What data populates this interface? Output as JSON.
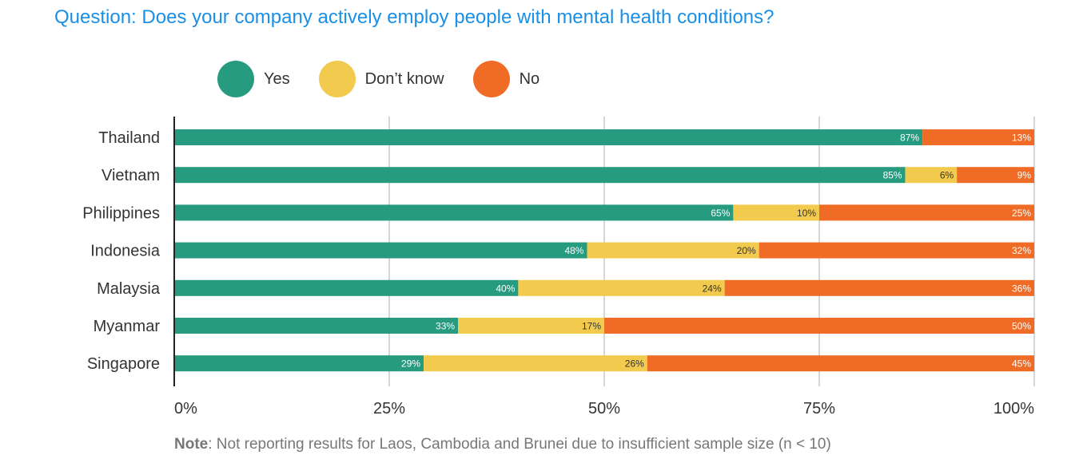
{
  "chart_data": {
    "type": "bar",
    "orientation": "horizontal",
    "stacked": true,
    "title": "Question: Does your company actively employ people with mental health conditions?",
    "categories": [
      "Thailand",
      "Vietnam",
      "Philippines",
      "Indonesia",
      "Malaysia",
      "Myanmar",
      "Singapore"
    ],
    "series": [
      {
        "name": "Yes",
        "color": "#279b80",
        "values": [
          87,
          85,
          65,
          48,
          40,
          33,
          29
        ]
      },
      {
        "name": "Don’t know",
        "color": "#f2cb4e",
        "values": [
          0,
          6,
          10,
          20,
          24,
          17,
          26
        ]
      },
      {
        "name": "No",
        "color": "#f06c26",
        "values": [
          13,
          9,
          25,
          32,
          36,
          50,
          45
        ]
      }
    ],
    "value_suffix": "%",
    "xlim": [
      0,
      100
    ],
    "x_ticks": [
      "0%",
      "25%",
      "50%",
      "75%",
      "100%"
    ],
    "grid": true,
    "legend_position": "top",
    "footnote": {
      "label": "Note",
      "text": ": Not reporting results for Laos, Cambodia and Brunei due to insufficient sample size (n < 10)"
    }
  }
}
